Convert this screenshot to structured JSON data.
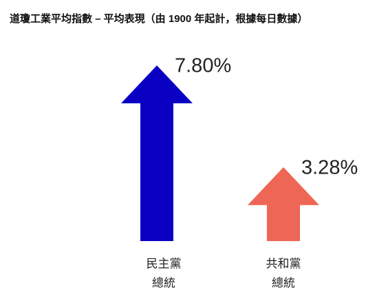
{
  "chart_data": {
    "type": "arrow-bar",
    "title": "道瓊工業平均指數 – 平均表現（由 1900 年起計，根據每日數據）",
    "categories": [
      [
        "民主黨",
        "總統"
      ],
      [
        "共和黨",
        "總統"
      ]
    ],
    "values": [
      7.8,
      3.28
    ],
    "value_labels": [
      "7.80%",
      "3.28%"
    ],
    "colors": [
      "#0a00c4",
      "#ee6655"
    ]
  }
}
